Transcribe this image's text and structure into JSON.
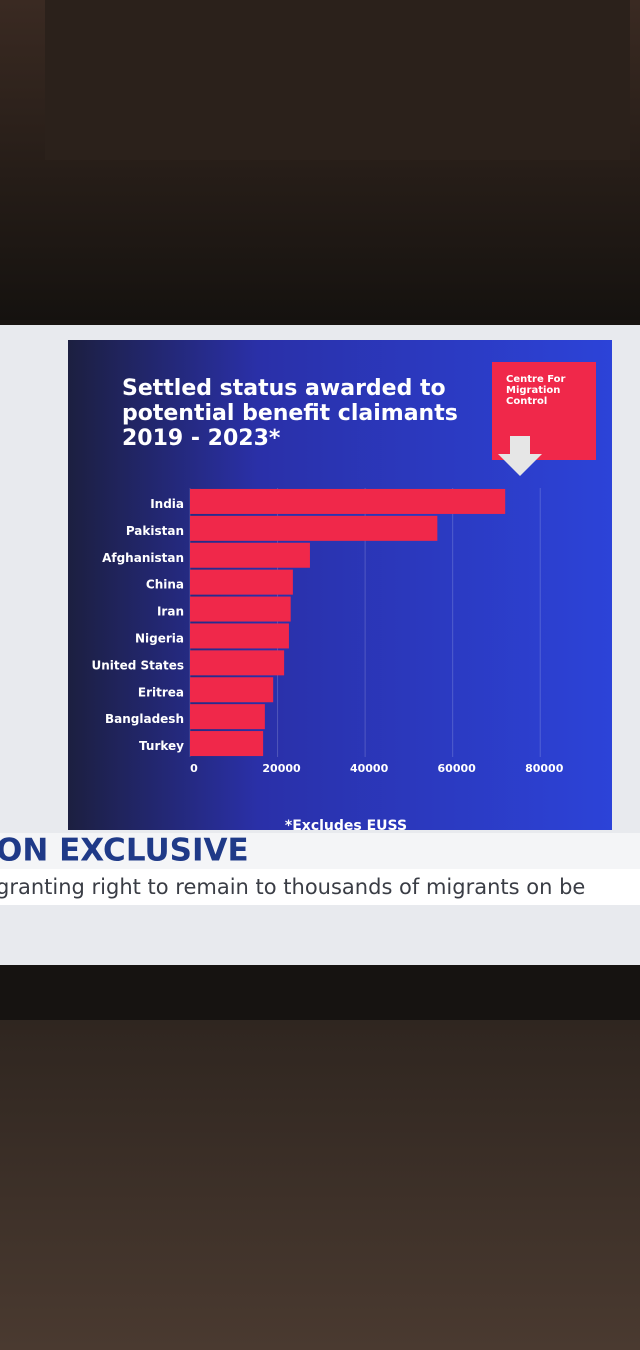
{
  "chart_data": {
    "type": "bar",
    "orientation": "horizontal",
    "title": "Settled status awarded to potential benefit claimants 2019 - 2023*",
    "logo": "Centre For Migration Control",
    "footnote": "*Excludes EUSS",
    "banner_title": "ON EXCLUSIVE",
    "banner_text": "granting right to remain to thousands of migrants on be",
    "categories": [
      "India",
      "Pakistan",
      "Afghanistan",
      "China",
      "Iran",
      "Nigeria",
      "United States",
      "Eritrea",
      "Bangladesh",
      "Turkey"
    ],
    "values": [
      72000,
      56500,
      27400,
      23500,
      23000,
      22600,
      21500,
      19000,
      17100,
      16700
    ],
    "color": "#f0284a",
    "xlim": [
      0,
      90000
    ],
    "xticks": [
      0,
      20000,
      40000,
      60000,
      80000
    ],
    "grid": true
  }
}
